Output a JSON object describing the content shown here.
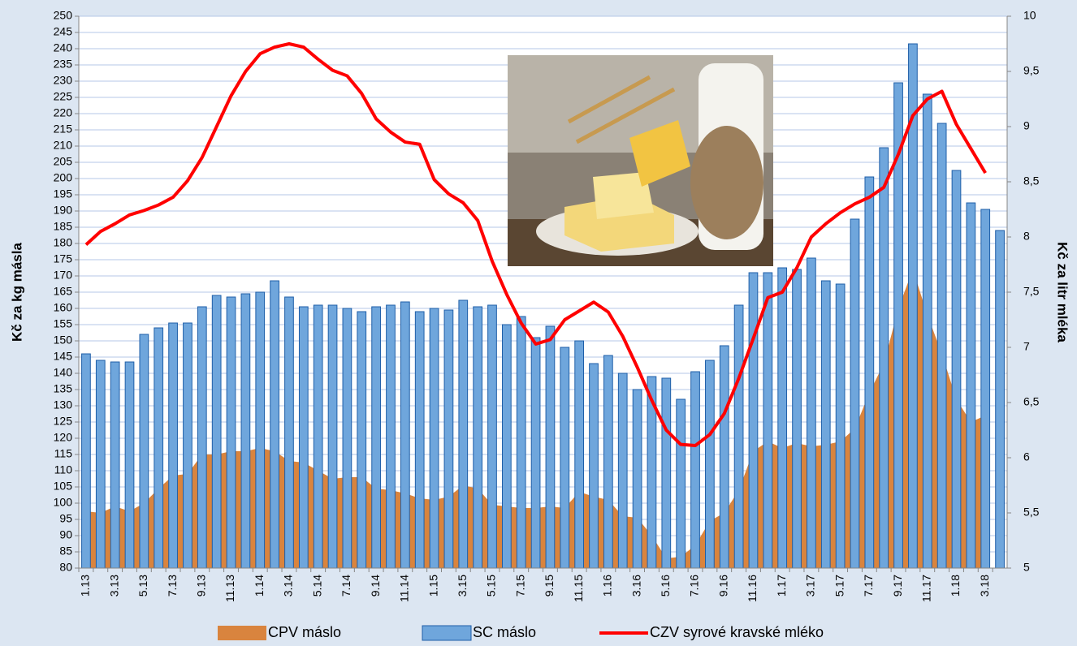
{
  "chart_data": {
    "type": "combo",
    "y_label": "Kč za kg másla",
    "y2_label": "Kč za litr mléka",
    "categories": [
      "1.13",
      null,
      "3.13",
      null,
      "5.13",
      null,
      "7.13",
      null,
      "9.13",
      null,
      "11.13",
      null,
      "1.14",
      null,
      "3.14",
      null,
      "5.14",
      null,
      "7.14",
      null,
      "9.14",
      null,
      "11.14",
      null,
      "1.15",
      null,
      "3.15",
      null,
      "5.15",
      null,
      "7.15",
      null,
      "9.15",
      null,
      "11.15",
      null,
      "1.16",
      null,
      "3.16",
      null,
      "5.16",
      null,
      "7.16",
      null,
      "9.16",
      null,
      "11.16",
      null,
      "1.17",
      null,
      "3.17",
      null,
      "5.17",
      null,
      "7.17",
      null,
      "9.17",
      null,
      "11.17",
      null,
      "1.18",
      null,
      "3.18",
      null
    ],
    "ylim": [
      80,
      250
    ],
    "yticks": [
      80,
      85,
      90,
      95,
      100,
      105,
      110,
      115,
      120,
      125,
      130,
      135,
      140,
      145,
      150,
      155,
      160,
      165,
      170,
      175,
      180,
      185,
      190,
      195,
      200,
      205,
      210,
      215,
      220,
      225,
      230,
      235,
      240,
      245,
      250
    ],
    "y2lim": [
      5,
      10
    ],
    "y2ticks": [
      5,
      {
        "value": 5.5,
        "label": "5,5"
      },
      6,
      {
        "value": 6.5,
        "label": "6,5"
      },
      7,
      {
        "value": 7.5,
        "label": "7,5"
      },
      8,
      {
        "value": 8.5,
        "label": "8,5"
      },
      9,
      {
        "value": 9.5,
        "label": "9,5"
      },
      10
    ],
    "grid": true,
    "series": [
      {
        "name": "CPV máslo",
        "type": "area",
        "color": "#d9843e",
        "values": [
          97.5,
          97,
          99,
          97.5,
          100,
          104.5,
          108.5,
          109,
          115,
          115,
          116,
          116,
          117,
          116,
          113,
          112.5,
          110,
          107.5,
          108,
          108,
          104.5,
          104,
          103,
          101.5,
          101,
          102,
          105.5,
          104.5,
          99.5,
          99,
          98.5,
          98.5,
          99,
          98.5,
          103.5,
          102,
          101,
          96,
          95.5,
          90,
          83,
          83.5,
          87,
          94.5,
          97,
          104,
          116,
          119,
          117,
          118.5,
          117.5,
          118,
          119,
          123,
          134,
          143,
          160,
          172,
          158,
          146,
          132,
          125,
          127,
          null
        ]
      },
      {
        "name": "SC máslo",
        "type": "bar",
        "color": "#6fa6dc",
        "values": [
          146,
          144,
          143.5,
          143.5,
          152,
          154,
          155.5,
          155.5,
          160.5,
          164,
          163.5,
          164.5,
          165,
          168.5,
          163.5,
          160.5,
          161,
          161,
          160,
          159,
          160.5,
          161,
          162,
          159,
          160,
          159.5,
          162.5,
          160.5,
          161,
          155,
          157.5,
          151,
          154.5,
          148,
          150,
          143,
          145.5,
          140,
          135,
          139,
          138.5,
          132,
          140.5,
          144,
          148.5,
          161,
          171,
          171,
          172.5,
          172,
          175.5,
          168.5,
          167.5,
          187.5,
          200.5,
          209.5,
          229.5,
          241.5,
          226,
          217,
          202.5,
          192.5,
          190.5,
          184
        ]
      },
      {
        "name": "CZV syrové kravské mléko",
        "type": "line",
        "axis": "y2",
        "color": "#ff0000",
        "values": [
          7.93,
          8.05,
          8.12,
          8.2,
          8.24,
          8.29,
          8.36,
          8.51,
          8.72,
          9.0,
          9.28,
          9.5,
          9.66,
          9.72,
          9.75,
          9.72,
          9.61,
          9.51,
          9.46,
          9.3,
          9.07,
          8.95,
          8.86,
          8.84,
          8.52,
          8.39,
          8.31,
          8.15,
          7.78,
          7.48,
          7.22,
          7.03,
          7.07,
          7.25,
          7.33,
          7.41,
          7.32,
          7.1,
          6.82,
          6.52,
          6.25,
          6.12,
          6.11,
          6.21,
          6.4,
          6.72,
          7.08,
          7.45,
          7.5,
          7.72,
          8.0,
          8.12,
          8.22,
          8.3,
          8.36,
          8.45,
          8.75,
          9.1,
          9.25,
          9.32,
          9.02,
          8.8,
          8.58,
          null
        ]
      }
    ]
  }
}
